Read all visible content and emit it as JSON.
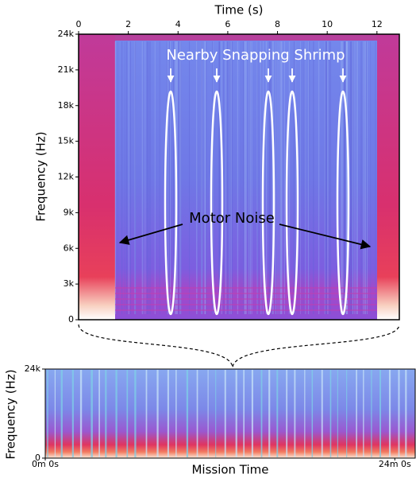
{
  "chart_data": [
    {
      "type": "heatmap",
      "xlabel": "Time (s)",
      "ylabel": "Frequency (Hz)",
      "xlim": [
        0,
        12.9
      ],
      "xticks": [
        0,
        2,
        4,
        6,
        8,
        10,
        12
      ],
      "ylim": [
        0,
        24000
      ],
      "yticks": [
        0,
        {
          "value": 3000,
          "label": "3k"
        },
        {
          "value": 6000,
          "label": "6k"
        },
        {
          "value": 9000,
          "label": "9k"
        },
        {
          "value": 12000,
          "label": "12k"
        },
        {
          "value": 15000,
          "label": "15k"
        },
        {
          "value": 18000,
          "label": "18k"
        },
        {
          "value": 21000,
          "label": "21k"
        },
        {
          "value": 24000,
          "label": "24k"
        }
      ],
      "annotations": [
        "Nearby Snapping Shrimp",
        "Motor Noise"
      ]
    },
    {
      "type": "heatmap",
      "xlabel": "Mission Time",
      "ylabel": "Frequency (Hz)",
      "xlim": [
        0,
        25.4
      ],
      "xticks": [
        {
          "value": 0,
          "label": "0m 0s"
        },
        {
          "value": 24,
          "label": "24m 0s"
        }
      ],
      "ylim": [
        0,
        24000
      ],
      "yticks": [
        0,
        {
          "value": 24000,
          "label": "24k"
        }
      ]
    }
  ]
}
